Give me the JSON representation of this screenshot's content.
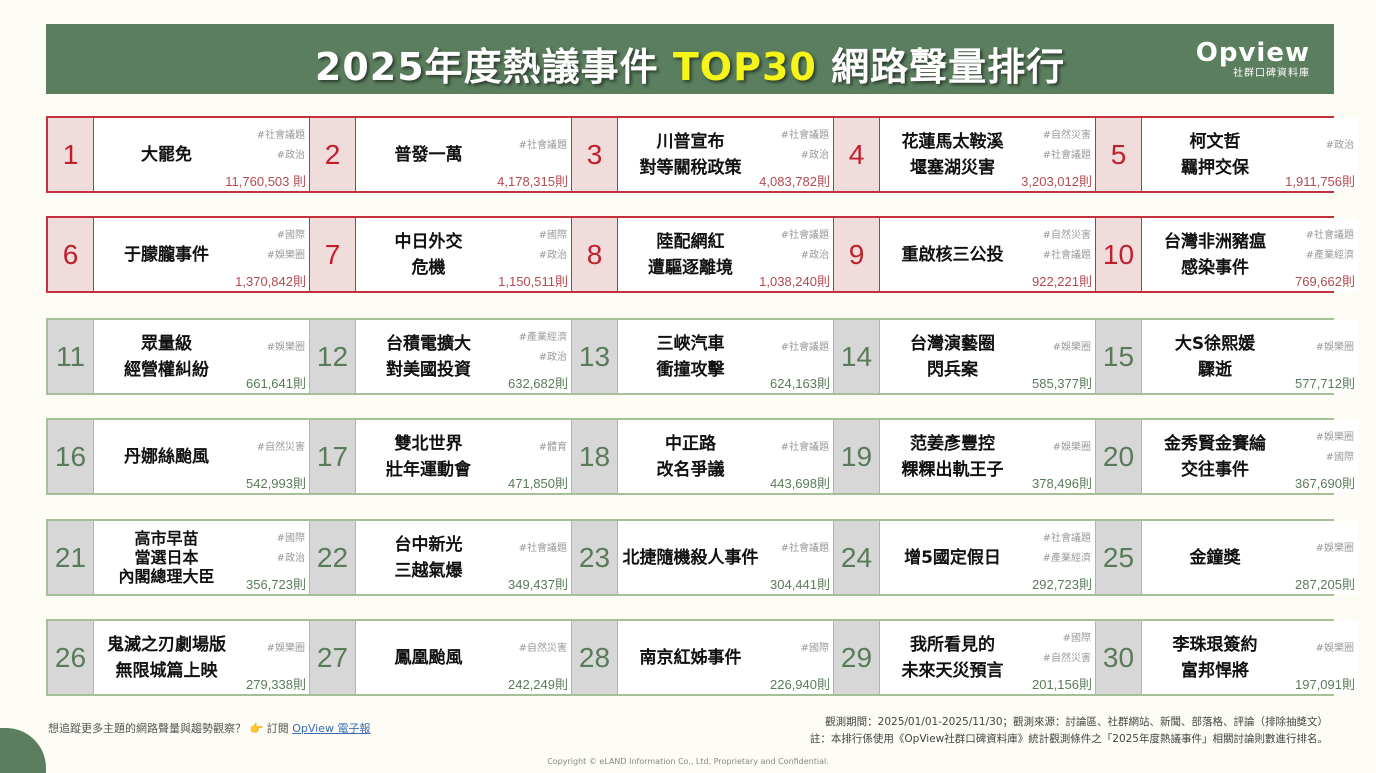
{
  "header": {
    "title_prefix": "2025年度熱議事件 ",
    "title_highlight": "TOP30",
    "title_suffix": " 網路聲量排行",
    "logo_word": "Opview",
    "logo_sub": "社群口碑資料庫"
  },
  "colors": {
    "header_bg": "#5b7f5e",
    "highlight": "#f5f51a",
    "top10_accent": "#c0202c",
    "rest_accent": "#5a7b5a"
  },
  "rows": [
    {
      "theme": "red",
      "items": [
        {
          "rank": "1",
          "name": [
            "大罷免"
          ],
          "tags": [
            "#社會議題",
            "#政治"
          ],
          "count": "11,760,503 則"
        },
        {
          "rank": "2",
          "name": [
            "普發一萬"
          ],
          "tags": [
            "#社會議題"
          ],
          "count": "4,178,315則"
        },
        {
          "rank": "3",
          "name": [
            "川普宣布",
            "對等關稅政策"
          ],
          "tags": [
            "#社會議題",
            "#政治"
          ],
          "count": "4,083,782則"
        },
        {
          "rank": "4",
          "name": [
            "花蓮馬太鞍溪",
            "堰塞湖災害"
          ],
          "tags": [
            "#自然災害",
            "#社會議題"
          ],
          "count": "3,203,012則"
        },
        {
          "rank": "5",
          "name": [
            "柯文哲",
            "羈押交保"
          ],
          "tags": [
            "#政治"
          ],
          "count": "1,911,756則"
        }
      ]
    },
    {
      "theme": "red",
      "items": [
        {
          "rank": "6",
          "name": [
            "于朦朧事件"
          ],
          "tags": [
            "#國際",
            "#娛樂圈"
          ],
          "count": "1,370,842則"
        },
        {
          "rank": "7",
          "name": [
            "中日外交",
            "危機"
          ],
          "tags": [
            "#國際",
            "#政治"
          ],
          "count": "1,150,511則"
        },
        {
          "rank": "8",
          "name": [
            "陸配網紅",
            "遭驅逐離境"
          ],
          "tags": [
            "#社會議題",
            "#政治"
          ],
          "count": "1,038,240則"
        },
        {
          "rank": "9",
          "name": [
            "重啟核三公投"
          ],
          "tags": [
            "#自然災害",
            "#社會議題"
          ],
          "count": "922,221則"
        },
        {
          "rank": "10",
          "name": [
            "台灣非洲豬瘟",
            "感染事件"
          ],
          "tags": [
            "#社會議題",
            "#產業經濟"
          ],
          "count": "769,662則"
        }
      ]
    },
    {
      "theme": "green",
      "items": [
        {
          "rank": "11",
          "name": [
            "眾量級",
            "經營權糾紛"
          ],
          "tags": [
            "#娛樂圈"
          ],
          "count": "661,641則"
        },
        {
          "rank": "12",
          "name": [
            "台積電擴大",
            "對美國投資"
          ],
          "tags": [
            "#產業經濟",
            "#政治"
          ],
          "count": "632,682則"
        },
        {
          "rank": "13",
          "name": [
            "三峽汽車",
            "衝撞攻擊"
          ],
          "tags": [
            "#社會議題"
          ],
          "count": "624,163則"
        },
        {
          "rank": "14",
          "name": [
            "台灣演藝圈",
            "閃兵案"
          ],
          "tags": [
            "#娛樂圈"
          ],
          "count": "585,377則"
        },
        {
          "rank": "15",
          "name": [
            "大S徐熙媛",
            "驟逝"
          ],
          "tags": [
            "#娛樂圈"
          ],
          "count": "577,712則"
        }
      ]
    },
    {
      "theme": "green",
      "items": [
        {
          "rank": "16",
          "name": [
            "丹娜絲颱風"
          ],
          "tags": [
            "#自然災害"
          ],
          "count": "542,993則"
        },
        {
          "rank": "17",
          "name": [
            "雙北世界",
            "壯年運動會"
          ],
          "tags": [
            "#體育"
          ],
          "count": "471,850則"
        },
        {
          "rank": "18",
          "name": [
            "中正路",
            "改名爭議"
          ],
          "tags": [
            "#社會議題"
          ],
          "count": "443,698則"
        },
        {
          "rank": "19",
          "name": [
            "范姜彥豐控",
            "粿粿出軌王子"
          ],
          "tags": [
            "#娛樂圈"
          ],
          "count": "378,496則"
        },
        {
          "rank": "20",
          "name": [
            "金秀賢金賽綸",
            "交往事件"
          ],
          "tags": [
            "#娛樂圈",
            "#國際"
          ],
          "count": "367,690則"
        }
      ]
    },
    {
      "theme": "green",
      "items": [
        {
          "rank": "21",
          "name": [
            "高市早苗",
            "當選日本",
            "內閣總理大臣"
          ],
          "tags": [
            "#國際",
            "#政治"
          ],
          "count": "356,723則"
        },
        {
          "rank": "22",
          "name": [
            "台中新光",
            "三越氣爆"
          ],
          "tags": [
            "#社會議題"
          ],
          "count": "349,437則"
        },
        {
          "rank": "23",
          "name": [
            "北捷隨機殺人事件"
          ],
          "tags": [
            "#社會議題"
          ],
          "count": "304,441則"
        },
        {
          "rank": "24",
          "name": [
            "增5國定假日"
          ],
          "tags": [
            "#社會議題",
            "#產業經濟"
          ],
          "count": "292,723則"
        },
        {
          "rank": "25",
          "name": [
            "金鐘獎"
          ],
          "tags": [
            "#娛樂圈"
          ],
          "count": "287,205則"
        }
      ]
    },
    {
      "theme": "green",
      "items": [
        {
          "rank": "26",
          "name": [
            "鬼滅之刃劇場版",
            "無限城篇上映"
          ],
          "tags": [
            "#娛樂圈"
          ],
          "count": "279,338則"
        },
        {
          "rank": "27",
          "name": [
            "鳳凰颱風"
          ],
          "tags": [
            "#自然災害"
          ],
          "count": "242,249則"
        },
        {
          "rank": "28",
          "name": [
            "南京紅姊事件"
          ],
          "tags": [
            "#國際"
          ],
          "count": "226,940則"
        },
        {
          "rank": "29",
          "name": [
            "我所看見的",
            "未來天災預言"
          ],
          "tags": [
            "#國際",
            "#自然災害"
          ],
          "count": "201,156則"
        },
        {
          "rank": "30",
          "name": [
            "李珠珢簽約",
            "富邦悍將"
          ],
          "tags": [
            "#娛樂圈"
          ],
          "count": "197,091則"
        }
      ]
    }
  ],
  "footer": {
    "promo_text": "想追蹤更多主題的網路聲量與趨勢觀察？",
    "promo_icon": "👉",
    "subscribe_prefix": " 訂閱 ",
    "subscribe_link": "OpView 電子報",
    "note_line1": "觀測期間：2025/01/01-2025/11/30；觀測來源：討論區、社群網站、新聞、部落格、評論（排除抽獎文）",
    "note_line2": "註：本排行係使用《OpView社群口碑資料庫》統計觀測條件之「2025年度熱議事件」相關討論則數進行排名。",
    "copyright": "Copyright © eLAND Information Co., Ltd. Proprietary and Confidential."
  }
}
